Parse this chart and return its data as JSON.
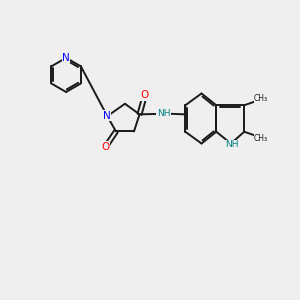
{
  "bg_color": "#efefef",
  "bond_color": "#1a1a1a",
  "N_color": "#0000ff",
  "O_color": "#ff0000",
  "NH_color": "#008080",
  "figsize": [
    3.0,
    3.0
  ],
  "dpi": 100,
  "xlim": [
    0,
    10
  ],
  "ylim": [
    0,
    10
  ]
}
